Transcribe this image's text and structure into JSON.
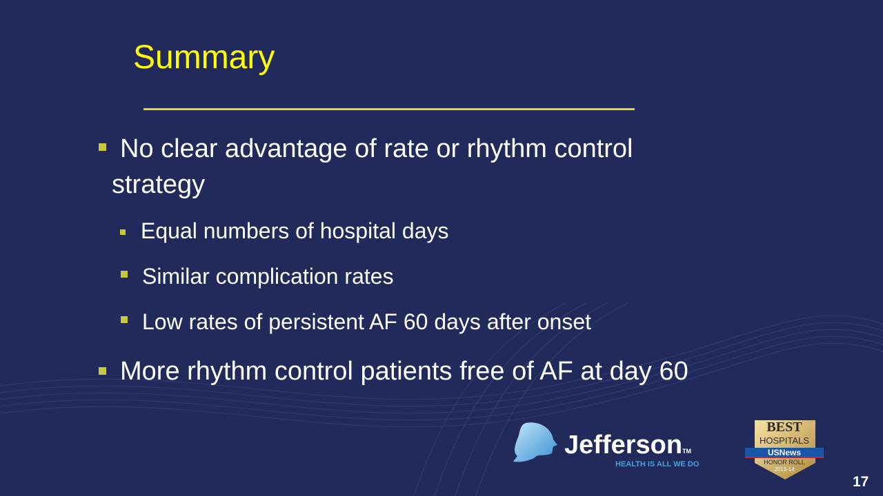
{
  "slide": {
    "title": "Summary",
    "bullets": [
      {
        "text_line1": "No clear advantage of rate or rhythm control",
        "text_line2": "strategy",
        "sub": [
          "Equal numbers of hospital days",
          "Similar complication rates",
          "Low rates of persistent AF 60 days after onset"
        ]
      },
      {
        "text": "More rhythm control patients free of AF at day 60"
      }
    ],
    "page_number": "17"
  },
  "logo": {
    "name": "Jefferson",
    "tm": "TM",
    "tagline": "HEALTH IS ALL WE DO"
  },
  "badge": {
    "line1": "BEST",
    "line2": "HOSPITALS",
    "line3": "USNews",
    "line4": "HONOR ROLL",
    "line5": "2013-14"
  },
  "colors": {
    "background": "#212a5a",
    "title": "#ffff00",
    "bullet": "#c8c83c",
    "text": "#ffffff"
  }
}
